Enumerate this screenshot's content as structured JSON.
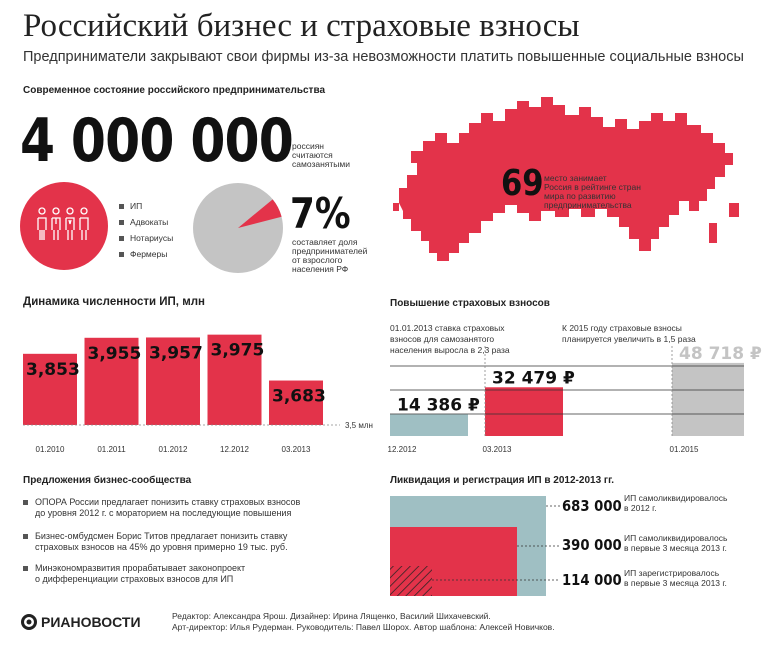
{
  "title": "Российский бизнес и страховые взносы",
  "subtitle": "Предприниматели закрывают свои фирмы из-за невозможности платить повышенные социальные взносы",
  "state": {
    "heading": "Современное состояние российского предпринимательства",
    "big_number": "4 000 000",
    "big_number_desc_1": "россиян",
    "big_number_desc_2": "считаются",
    "big_number_desc_3": "самозанятыми",
    "legend": [
      "ИП",
      "Адвокаты",
      "Нотариусы",
      "Фермеры"
    ],
    "share_value": "7%",
    "share_fraction": 0.07,
    "share_desc_1": "составляет доля",
    "share_desc_2": "предпринимателей",
    "share_desc_3": "от взрослого",
    "share_desc_4": "населения РФ",
    "rank_value": "69",
    "rank_desc_1": "место занимает",
    "rank_desc_2": "Россия в рейтинге стран",
    "rank_desc_3": "мира по развитию",
    "rank_desc_4": "предпринимательства"
  },
  "colors": {
    "red": "#e3334a",
    "gray": "#c4c4c4",
    "teal": "#9fbfc3"
  },
  "chart_data": [
    {
      "type": "bar",
      "title": "Динамика численности ИП, млн",
      "categories": [
        "01.2010",
        "01.2011",
        "01.2012",
        "12.2012",
        "03.2013"
      ],
      "values": [
        3.853,
        3.955,
        3.957,
        3.975,
        3.683
      ],
      "value_labels": [
        "3,853",
        "3,955",
        "3,957",
        "3,975",
        "3,683"
      ],
      "baseline_label": "3,5 млн",
      "ylim": [
        3.5,
        4.0
      ]
    },
    {
      "type": "bar",
      "title": "Повышение страховых взносов",
      "categories": [
        "12.2012",
        "03.2013",
        "01.2015"
      ],
      "values": [
        14386,
        32479,
        48718
      ],
      "value_labels": [
        "14 386 ₽",
        "32 479 ₽",
        "48 718 ₽"
      ],
      "note_1": "01.01.2013 ставка страховых",
      "note_2": "взносов для самозанятого",
      "note_3": "населения выросла в 2,3 раза",
      "note_4": "К 2015 году страховые взносы",
      "note_5": "планируется увеличить в 1,5 раза"
    },
    {
      "type": "area",
      "title": "Ликвидация и регистрация ИП в 2012-2013 гг.",
      "values": [
        683000,
        390000,
        114000
      ],
      "value_labels": [
        "683 000",
        "390 000",
        "114 000"
      ],
      "desc": [
        [
          "ИП самоликвидировалось",
          "в 2012 г."
        ],
        [
          "ИП самоликвидировалось",
          "в первые 3 месяца 2013 г."
        ],
        [
          "ИП зарегистрировалось",
          "в первые 3 месяца 2013 г."
        ]
      ]
    }
  ],
  "proposals": {
    "heading": "Предложения бизнес-сообщества",
    "items": [
      [
        "ОПОРА России предлагает понизить ставку страховых взносов",
        "до уровня 2012 г. с мораторием на последующие повышения"
      ],
      [
        "Бизнес-омбудсмен Борис Титов предлагает понизить ставку",
        "страховых взносов на 45% до уровня примерно 19 тыс. руб."
      ],
      [
        "Минэкономразвития прорабатывает законопроект",
        "о дифференциации страховых взносов для ИП"
      ]
    ]
  },
  "footer": {
    "logo": "РИАНОВОСТИ",
    "credits_1": "Редактор: Александра Ярош. Дизайнер: Ирина Лященко, Василий Шихачевский.",
    "credits_2": "Арт-директор: Илья Рудерман. Руководитель: Павел Шорох. Автор шаблона: Алексей Новичков."
  }
}
